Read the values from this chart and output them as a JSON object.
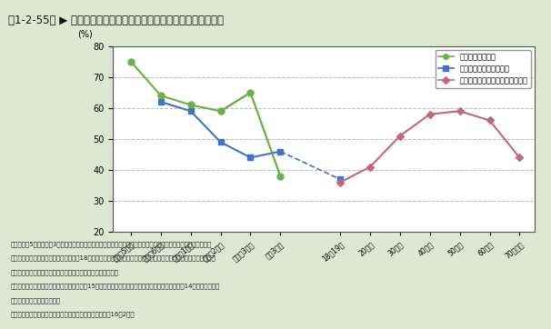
{
  "title": "第1-2-55図 ▶ 学年、年齢別の科学技術に関する興味、関心の度合い",
  "ylabel": "(%)",
  "ylim": [
    20,
    80
  ],
  "yticks": [
    20,
    30,
    40,
    50,
    60,
    70,
    80
  ],
  "background_color": "#dce8d2",
  "plot_bg_color": "#ffffff",
  "header_bg_color": "#c2d9ec",
  "categories_school": [
    "小学校5年生",
    "小学校6年生",
    "中学校1年生",
    "中学校2年生",
    "中学校3年生",
    "高校3年生"
  ],
  "categories_adult": [
    "18～19歳",
    "20歳代",
    "30歳代",
    "40歳代",
    "50歳代",
    "60歳代",
    "70歳以上"
  ],
  "science_y": [
    75,
    64,
    61,
    59,
    65,
    38
  ],
  "math_y": [
    62,
    59,
    49,
    44,
    46,
    37
  ],
  "news_y": [
    36,
    41,
    51,
    58,
    59,
    56,
    44
  ],
  "science_color": "#6ab04c",
  "math_color": "#4472c4",
  "news_color": "#c0697a",
  "science_label": "理科の勉強が好き",
  "math_label": "算数・数学の勉強が好き",
  "news_label": "科学技術のニュース等に関心ある",
  "note_lines": [
    "注）小学校5年生～高校3年生については、当該科目の「勉強が好きだ」に対し「そう思う」又は「どちらかといえ",
    "　　ばそう思う」と回答した者の割合、18歳以上については、科学技術についてのニュースや話題に「関心がある」",
    "　　又は「ある程度関心がある」と回答した者の割合である。",
    "資料：文部科学省国立教育政策研究所「平成15年度小・中学校教育課程実施状況調査」、同「平成14年度高等学校教",
    "　　　育課程実施状況調査」",
    "　　　内閣府「科学技術と社会に関する世論調査」（平成16年2月）"
  ]
}
